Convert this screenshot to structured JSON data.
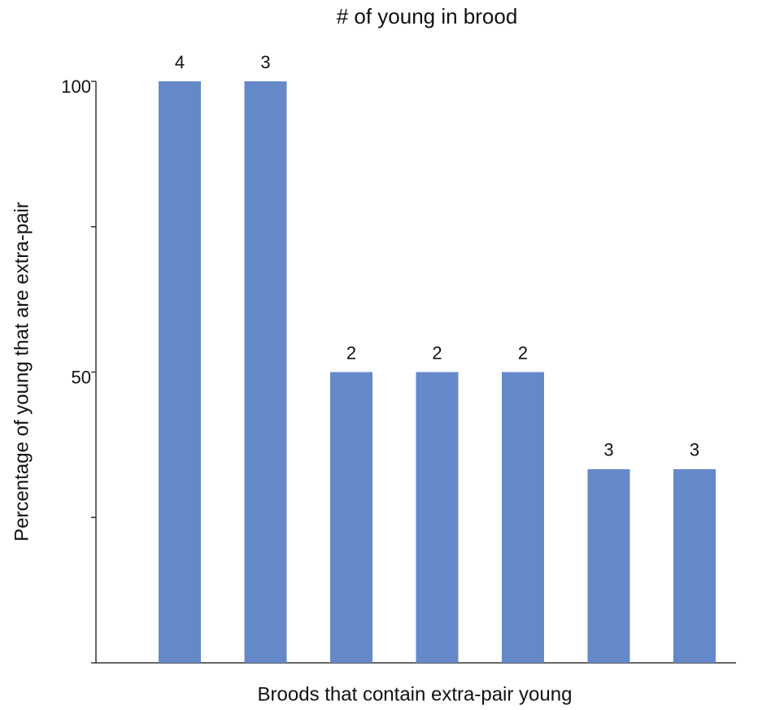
{
  "chart_data": {
    "type": "bar",
    "title": "# of young in brood",
    "xlabel": "Broods that contain extra-pair young",
    "ylabel": "Percentage of young that are extra-pair",
    "categories": [
      null,
      null,
      null,
      null,
      null,
      null,
      null
    ],
    "values": [
      100,
      100,
      50,
      50,
      50,
      33.3,
      33.3
    ],
    "young_in_brood": [
      4,
      3,
      2,
      2,
      2,
      3,
      3
    ],
    "color": "#6588c8",
    "ylim": [
      0,
      100
    ],
    "yticks": [
      50,
      100
    ],
    "minor_yticks": [
      25,
      75
    ],
    "grid": false
  }
}
